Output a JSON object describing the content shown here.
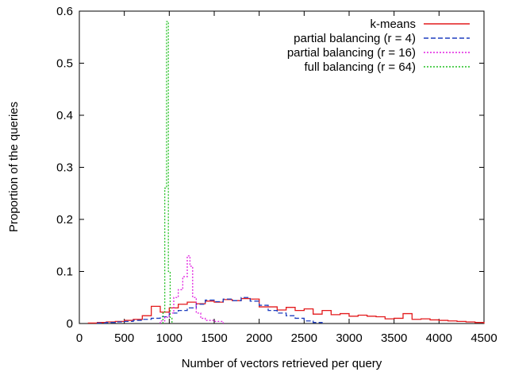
{
  "chart_data": {
    "type": "line",
    "title": "",
    "xlabel": "Number of vectors retrieved per query",
    "ylabel": "Proportion of the queries",
    "xlim": [
      0,
      4500
    ],
    "ylim": [
      0,
      0.6
    ],
    "xticks": [
      0,
      500,
      1000,
      1500,
      2000,
      2500,
      3000,
      3500,
      4000,
      4500
    ],
    "yticks": [
      0,
      0.1,
      0.2,
      0.3,
      0.4,
      0.5,
      0.6
    ],
    "xtick_labels": [
      "0",
      "500",
      "1000",
      "1500",
      "2000",
      "2500",
      "3000",
      "3500",
      "4000",
      "4500"
    ],
    "ytick_labels": [
      "0",
      "0.1",
      "0.2",
      "0.3",
      "0.4",
      "0.5",
      "0.6"
    ],
    "grid": false,
    "legend_position": "top-right",
    "series": [
      {
        "name": "k-means",
        "color": "#e31a1c",
        "dash": "solid",
        "style": "step",
        "x": [
          100,
          200,
          300,
          400,
          500,
          600,
          700,
          800,
          900,
          1000,
          1100,
          1200,
          1300,
          1400,
          1500,
          1600,
          1700,
          1800,
          1900,
          2000,
          2100,
          2200,
          2300,
          2400,
          2500,
          2600,
          2700,
          2800,
          2900,
          3000,
          3100,
          3200,
          3300,
          3400,
          3500,
          3600,
          3700,
          3800,
          3900,
          4000,
          4100,
          4200,
          4300,
          4400
        ],
        "values": [
          0.001,
          0.002,
          0.003,
          0.004,
          0.006,
          0.008,
          0.015,
          0.033,
          0.022,
          0.03,
          0.037,
          0.041,
          0.038,
          0.043,
          0.041,
          0.046,
          0.044,
          0.048,
          0.047,
          0.032,
          0.032,
          0.026,
          0.031,
          0.025,
          0.028,
          0.018,
          0.025,
          0.017,
          0.019,
          0.014,
          0.016,
          0.014,
          0.013,
          0.009,
          0.01,
          0.019,
          0.008,
          0.009,
          0.007,
          0.006,
          0.005,
          0.004,
          0.003,
          0.002
        ]
      },
      {
        "name": "partial balancing (r = 4)",
        "color": "#1f3fbf",
        "dash": "dashed",
        "style": "step",
        "x": [
          200,
          300,
          400,
          500,
          600,
          700,
          800,
          900,
          1000,
          1100,
          1200,
          1300,
          1400,
          1500,
          1600,
          1700,
          1800,
          1900,
          2000,
          2100,
          2200,
          2300,
          2400,
          2500,
          2600
        ],
        "values": [
          0.001,
          0.002,
          0.003,
          0.004,
          0.006,
          0.008,
          0.01,
          0.013,
          0.02,
          0.025,
          0.03,
          0.037,
          0.045,
          0.042,
          0.047,
          0.044,
          0.05,
          0.043,
          0.035,
          0.025,
          0.02,
          0.015,
          0.01,
          0.005,
          0.002
        ]
      },
      {
        "name": "partial balancing (r = 16)",
        "color": "#e020e0",
        "dash": "dotted",
        "style": "step",
        "x": [
          900,
          950,
          1000,
          1050,
          1100,
          1150,
          1200,
          1230,
          1260,
          1300,
          1350,
          1400,
          1500
        ],
        "values": [
          0.005,
          0.012,
          0.02,
          0.05,
          0.065,
          0.09,
          0.13,
          0.11,
          0.05,
          0.02,
          0.01,
          0.006,
          0.004
        ]
      },
      {
        "name": "full balancing (r = 64)",
        "color": "#22c022",
        "dash": "dotted",
        "style": "step",
        "x": [
          930,
          950,
          970,
          990,
          1010
        ],
        "values": [
          0.02,
          0.26,
          0.58,
          0.1,
          0.01
        ]
      }
    ]
  }
}
